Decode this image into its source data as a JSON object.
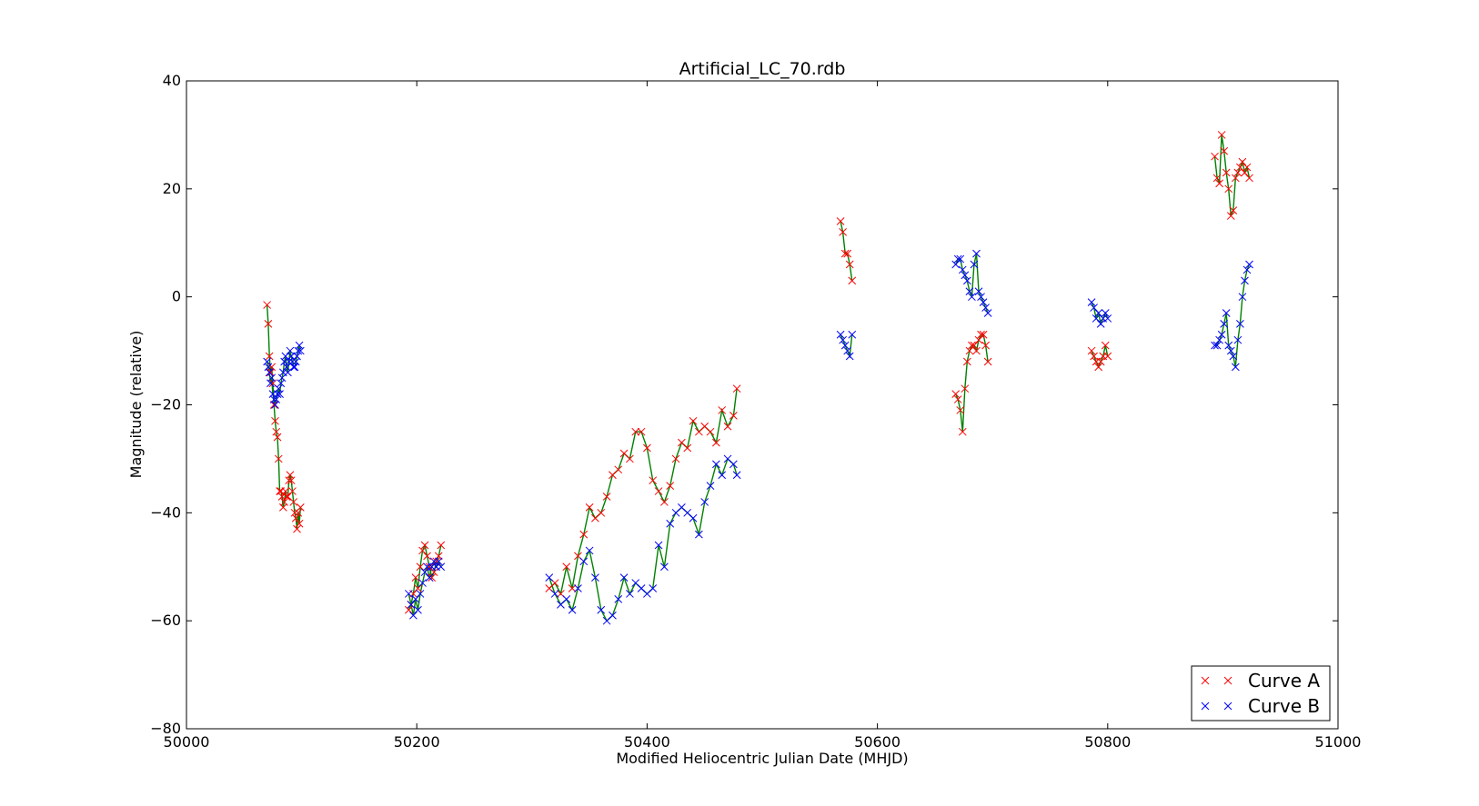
{
  "chart_data": {
    "type": "scatter",
    "title": "Artificial_LC_70.rdb",
    "xlabel": "Modified Heliocentric Julian Date (MHJD)",
    "ylabel": "Magnitude (relative)",
    "xlim": [
      50000,
      51000
    ],
    "ylim": [
      -80,
      40
    ],
    "xticks": [
      50000,
      50200,
      50400,
      50600,
      50800,
      51000
    ],
    "yticks": [
      -80,
      -60,
      -40,
      -20,
      0,
      20,
      40
    ],
    "xtick_labels": [
      "50000",
      "50200",
      "50400",
      "50600",
      "50800",
      "51000"
    ],
    "ytick_labels": [
      "−80",
      "−60",
      "−40",
      "−20",
      "0",
      "20",
      "40"
    ],
    "grid": false,
    "legend_position": "lower-right",
    "legend_marker": "×",
    "fit_color": "#008000",
    "series": [
      {
        "name": "Curve A",
        "color": "#ff0000",
        "marker": "x",
        "x": [
          50070,
          50071,
          50072,
          50073,
          50074,
          50075,
          50076,
          50077,
          50078,
          50079,
          50080,
          50081,
          50082,
          50083,
          50084,
          50085,
          50086,
          50087,
          50088,
          50089,
          50090,
          50091,
          50092,
          50093,
          50094,
          50095,
          50096,
          50097,
          50098,
          50099,
          50193,
          50195,
          50197,
          50199,
          50201,
          50203,
          50205,
          50207,
          50209,
          50211,
          50213,
          50215,
          50217,
          50219,
          50221,
          50315,
          50320,
          50325,
          50330,
          50335,
          50340,
          50345,
          50350,
          50355,
          50360,
          50365,
          50370,
          50375,
          50380,
          50385,
          50390,
          50395,
          50400,
          50405,
          50410,
          50415,
          50420,
          50425,
          50430,
          50435,
          50440,
          50445,
          50450,
          50455,
          50460,
          50465,
          50470,
          50475,
          50478,
          50568,
          50570,
          50572,
          50574,
          50576,
          50578,
          50668,
          50670,
          50672,
          50674,
          50676,
          50678,
          50680,
          50682,
          50684,
          50686,
          50688,
          50690,
          50692,
          50694,
          50696,
          50786,
          50788,
          50790,
          50792,
          50794,
          50796,
          50798,
          50800,
          50893,
          50895,
          50897,
          50899,
          50901,
          50903,
          50905,
          50907,
          50909,
          50911,
          50913,
          50915,
          50917,
          50919,
          50921,
          50923
        ],
        "y": [
          -1.5,
          -5,
          -11,
          -14,
          -13,
          -16,
          -20,
          -23,
          -25,
          -26,
          -30,
          -36,
          -36,
          -37,
          -39,
          -38,
          -36,
          -37,
          -37,
          -34,
          -33,
          -34,
          -36,
          -38,
          -40,
          -41,
          -43,
          -40,
          -42,
          -39,
          -58,
          -57,
          -55,
          -52,
          -54,
          -50,
          -47,
          -46,
          -48,
          -50,
          -52,
          -51,
          -49,
          -48,
          -46,
          -54,
          -53,
          -55,
          -50,
          -54,
          -48,
          -44,
          -39,
          -41,
          -40,
          -37,
          -33,
          -32,
          -29,
          -30,
          -25,
          -25,
          -28,
          -34,
          -36,
          -38,
          -35,
          -30,
          -27,
          -28,
          -23,
          -25,
          -24,
          -25,
          -27,
          -21,
          -24,
          -22,
          -17,
          14,
          12,
          8,
          8,
          6,
          3,
          -18,
          -19,
          -21,
          -25,
          -17,
          -12,
          -10,
          -9,
          -9,
          -10,
          -8,
          -7,
          -7,
          -9,
          -12,
          -10,
          -11,
          -12,
          -13,
          -12,
          -11,
          -9,
          -11,
          26,
          22,
          21,
          30,
          27,
          23,
          20,
          15,
          16,
          22,
          23,
          24,
          25,
          23,
          24,
          22
        ]
      },
      {
        "name": "Curve B",
        "color": "#0000ff",
        "marker": "x",
        "x": [
          50070,
          50071,
          50072,
          50073,
          50074,
          50075,
          50076,
          50077,
          50078,
          50079,
          50080,
          50081,
          50082,
          50083,
          50084,
          50085,
          50086,
          50087,
          50088,
          50089,
          50090,
          50091,
          50092,
          50093,
          50094,
          50095,
          50096,
          50097,
          50098,
          50099,
          50193,
          50195,
          50197,
          50199,
          50201,
          50203,
          50205,
          50207,
          50209,
          50211,
          50213,
          50215,
          50217,
          50219,
          50221,
          50315,
          50320,
          50325,
          50330,
          50335,
          50340,
          50345,
          50350,
          50355,
          50360,
          50365,
          50370,
          50375,
          50380,
          50385,
          50390,
          50395,
          50400,
          50405,
          50410,
          50415,
          50420,
          50425,
          50430,
          50435,
          50440,
          50445,
          50450,
          50455,
          50460,
          50465,
          50470,
          50475,
          50478,
          50568,
          50570,
          50572,
          50574,
          50576,
          50578,
          50668,
          50670,
          50672,
          50674,
          50676,
          50678,
          50680,
          50682,
          50684,
          50686,
          50688,
          50690,
          50692,
          50694,
          50696,
          50786,
          50788,
          50790,
          50792,
          50794,
          50796,
          50798,
          50800,
          50893,
          50895,
          50897,
          50899,
          50901,
          50903,
          50905,
          50907,
          50909,
          50911,
          50913,
          50915,
          50917,
          50919,
          50921,
          50923
        ],
        "y": [
          -12,
          -13,
          -14,
          -16,
          -15,
          -18,
          -19,
          -20,
          -19,
          -18,
          -17,
          -18,
          -16,
          -15,
          -14,
          -12,
          -11,
          -13,
          -14,
          -12,
          -10,
          -11,
          -12,
          -13,
          -13,
          -12,
          -11,
          -10,
          -9,
          -10,
          -55,
          -57,
          -59,
          -56,
          -58,
          -55,
          -53,
          -51,
          -50,
          -52,
          -50,
          -49,
          -50,
          -49,
          -50,
          -52,
          -55,
          -57,
          -56,
          -58,
          -54,
          -49,
          -47,
          -52,
          -58,
          -60,
          -59,
          -56,
          -52,
          -55,
          -53,
          -54,
          -55,
          -54,
          -46,
          -50,
          -42,
          -40,
          -39,
          -40,
          -41,
          -44,
          -38,
          -35,
          -31,
          -33,
          -30,
          -31,
          -33,
          -7,
          -8,
          -9,
          -10,
          -11,
          -7,
          6,
          7,
          7,
          5,
          4,
          3,
          1,
          0,
          6,
          8,
          1,
          0,
          -1,
          -2,
          -3,
          -1,
          -2,
          -4,
          -3,
          -5,
          -4,
          -3,
          -4,
          -9,
          -9,
          -8,
          -7,
          -5,
          -3,
          -9,
          -10,
          -11,
          -13,
          -8,
          -5,
          0,
          3,
          5,
          6
        ]
      }
    ]
  }
}
